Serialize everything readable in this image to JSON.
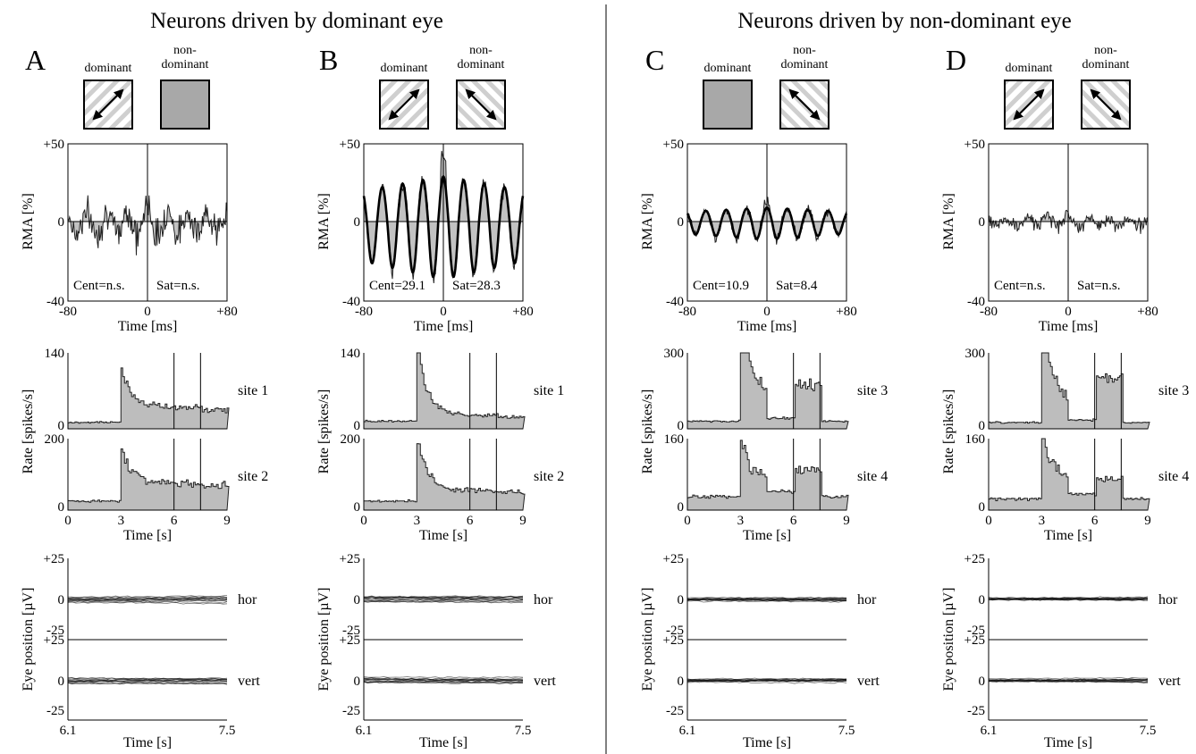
{
  "headers": [
    "Neurons driven by dominant eye",
    "Neurons driven by non-dominant eye"
  ],
  "stimulus_labels": {
    "dominant": "dominant",
    "non_dominant_line1": "non-",
    "non_dominant_line2": "dominant"
  },
  "chart_data": [
    {
      "type": "line",
      "panel": "A",
      "letter": "A",
      "stimuli": {
        "dominant": "grating",
        "non_dominant": "blank"
      },
      "rma": {
        "ylabel": "RMA  [%]",
        "xlabel": "Time [ms]",
        "xlim": [
          -80,
          80
        ],
        "ylim": [
          -40,
          50
        ],
        "yticks": [
          "+50",
          "0",
          "-40"
        ],
        "xticks": [
          "-80",
          "0",
          "+80"
        ],
        "cent": "Cent=n.s.",
        "sat": "Sat=n.s.",
        "amplitude": 8,
        "noise": 9,
        "fit": false
      },
      "rate": {
        "ylabel": "Rate [spikes/s]",
        "xlabel": "Time [s]",
        "xlim": [
          0,
          9
        ],
        "xticks": [
          "0",
          "3",
          "6",
          "9"
        ],
        "markers": [
          6,
          7.5
        ],
        "sites": [
          {
            "name": "site 1",
            "ymax": "140",
            "ymax_value": 140,
            "baseline": 12,
            "peak": 95,
            "sustained": 50,
            "late": 35,
            "second_bump": 0
          },
          {
            "name": "site 2",
            "ymax": "200",
            "ymax_value": 200,
            "baseline": 25,
            "peak": 170,
            "sustained": 85,
            "late": 70,
            "second_bump": 0
          }
        ]
      },
      "eye": {
        "ylabel": "Eye position [µV]",
        "xlabel": "Time [s]",
        "xlim": [
          6.1,
          7.5
        ],
        "xticks": [
          "6.1",
          "7.5"
        ],
        "channels": [
          {
            "name": "hor",
            "yticks": [
              "+25",
              "0",
              "-25"
            ]
          },
          {
            "name": "vert",
            "yticks": [
              "+25",
              "0",
              "-25"
            ]
          }
        ]
      }
    },
    {
      "type": "line",
      "panel": "B",
      "letter": "B",
      "stimuli": {
        "dominant": "grating",
        "non_dominant": "grating"
      },
      "rma": {
        "ylabel": "RMA  [%]",
        "xlabel": "Time [ms]",
        "xlim": [
          -80,
          80
        ],
        "ylim": [
          -40,
          50
        ],
        "yticks": [
          "+50",
          "0",
          "-40"
        ],
        "xticks": [
          "-80",
          "0",
          "+80"
        ],
        "cent": "Cent=29.1",
        "sat": "Sat=28.3",
        "amplitude": 29,
        "noise": 5,
        "fit": true
      },
      "rate": {
        "ylabel": "Rate [spikes/s]",
        "xlabel": "Time [s]",
        "xlim": [
          0,
          9
        ],
        "xticks": [
          "0",
          "3",
          "6",
          "9"
        ],
        "markers": [
          6,
          7.5
        ],
        "sites": [
          {
            "name": "site 1",
            "ymax": "140",
            "ymax_value": 140,
            "baseline": 14,
            "peak": 138,
            "sustained": 35,
            "late": 22,
            "second_bump": 0
          },
          {
            "name": "site 2",
            "ymax": "200",
            "ymax_value": 200,
            "baseline": 25,
            "peak": 195,
            "sustained": 65,
            "late": 50,
            "second_bump": 0
          }
        ]
      },
      "eye": {
        "ylabel": "Eye position [µV]",
        "xlabel": "Time [s]",
        "xlim": [
          6.1,
          7.5
        ],
        "xticks": [
          "6.1",
          "7.5"
        ],
        "channels": [
          {
            "name": "hor",
            "yticks": [
              "+25",
              "0",
              "-25"
            ]
          },
          {
            "name": "vert",
            "yticks": [
              "+25",
              "0",
              "-25"
            ]
          }
        ]
      }
    },
    {
      "type": "line",
      "panel": "C",
      "letter": "C",
      "stimuli": {
        "dominant": "blank",
        "non_dominant": "grating"
      },
      "rma": {
        "ylabel": "RMA  [%]",
        "xlabel": "Time [ms]",
        "xlim": [
          -80,
          80
        ],
        "ylim": [
          -40,
          50
        ],
        "yticks": [
          "+50",
          "0",
          "-40"
        ],
        "xticks": [
          "-80",
          "0",
          "+80"
        ],
        "cent": "Cent=10.9",
        "sat": "Sat=8.4",
        "amplitude": 9,
        "noise": 3,
        "fit": true
      },
      "rate": {
        "ylabel": "Rate [spikes/s]",
        "xlabel": "Time [s]",
        "xlim": [
          0,
          9
        ],
        "xticks": [
          "0",
          "3",
          "6",
          "9"
        ],
        "markers": [
          6,
          7.5
        ],
        "sites": [
          {
            "name": "site 3",
            "ymax": "300",
            "ymax_value": 300,
            "baseline": 30,
            "peak": 290,
            "sustained": 220,
            "late": 30,
            "second_bump": 180
          },
          {
            "name": "site 4",
            "ymax": "160",
            "ymax_value": 160,
            "baseline": 30,
            "peak": 140,
            "sustained": 80,
            "late": 60,
            "second_bump": 90
          }
        ]
      },
      "eye": {
        "ylabel": "Eye position [µV]",
        "xlabel": "Time [s]",
        "xlim": [
          6.1,
          7.5
        ],
        "xticks": [
          "6.1",
          "7.5"
        ],
        "channels": [
          {
            "name": "hor",
            "yticks": [
              "+25",
              "0",
              "-25"
            ]
          },
          {
            "name": "vert",
            "yticks": [
              "+25",
              "0",
              "-25"
            ]
          }
        ]
      }
    },
    {
      "type": "line",
      "panel": "D",
      "letter": "D",
      "stimuli": {
        "dominant": "grating",
        "non_dominant": "grating"
      },
      "rma": {
        "ylabel": "RMA  [%]",
        "xlabel": "Time [ms]",
        "xlim": [
          -80,
          80
        ],
        "ylim": [
          -40,
          50
        ],
        "yticks": [
          "+50",
          "0",
          "-40"
        ],
        "xticks": [
          "-80",
          "0",
          "+80"
        ],
        "cent": "Cent=n.s.",
        "sat": "Sat=n.s.",
        "amplitude": 3,
        "noise": 4,
        "fit": false
      },
      "rate": {
        "ylabel": "Rate [spikes/s]",
        "xlabel": "Time [s]",
        "xlim": [
          0,
          9
        ],
        "xticks": [
          "0",
          "3",
          "6",
          "9"
        ],
        "markers": [
          6,
          7.5
        ],
        "sites": [
          {
            "name": "site 3",
            "ymax": "300",
            "ymax_value": 300,
            "baseline": 25,
            "peak": 280,
            "sustained": 180,
            "late": 30,
            "second_bump": 200
          },
          {
            "name": "site 4",
            "ymax": "160",
            "ymax_value": 160,
            "baseline": 25,
            "peak": 150,
            "sustained": 80,
            "late": 60,
            "second_bump": 70
          }
        ]
      },
      "eye": {
        "ylabel": "Eye position [µV]",
        "xlabel": "Time [s]",
        "xlim": [
          6.1,
          7.5
        ],
        "xticks": [
          "6.1",
          "7.5"
        ],
        "channels": [
          {
            "name": "hor",
            "yticks": [
              "+25",
              "0",
              "-25"
            ]
          },
          {
            "name": "vert",
            "yticks": [
              "+25",
              "0",
              "-25"
            ]
          }
        ]
      }
    }
  ]
}
